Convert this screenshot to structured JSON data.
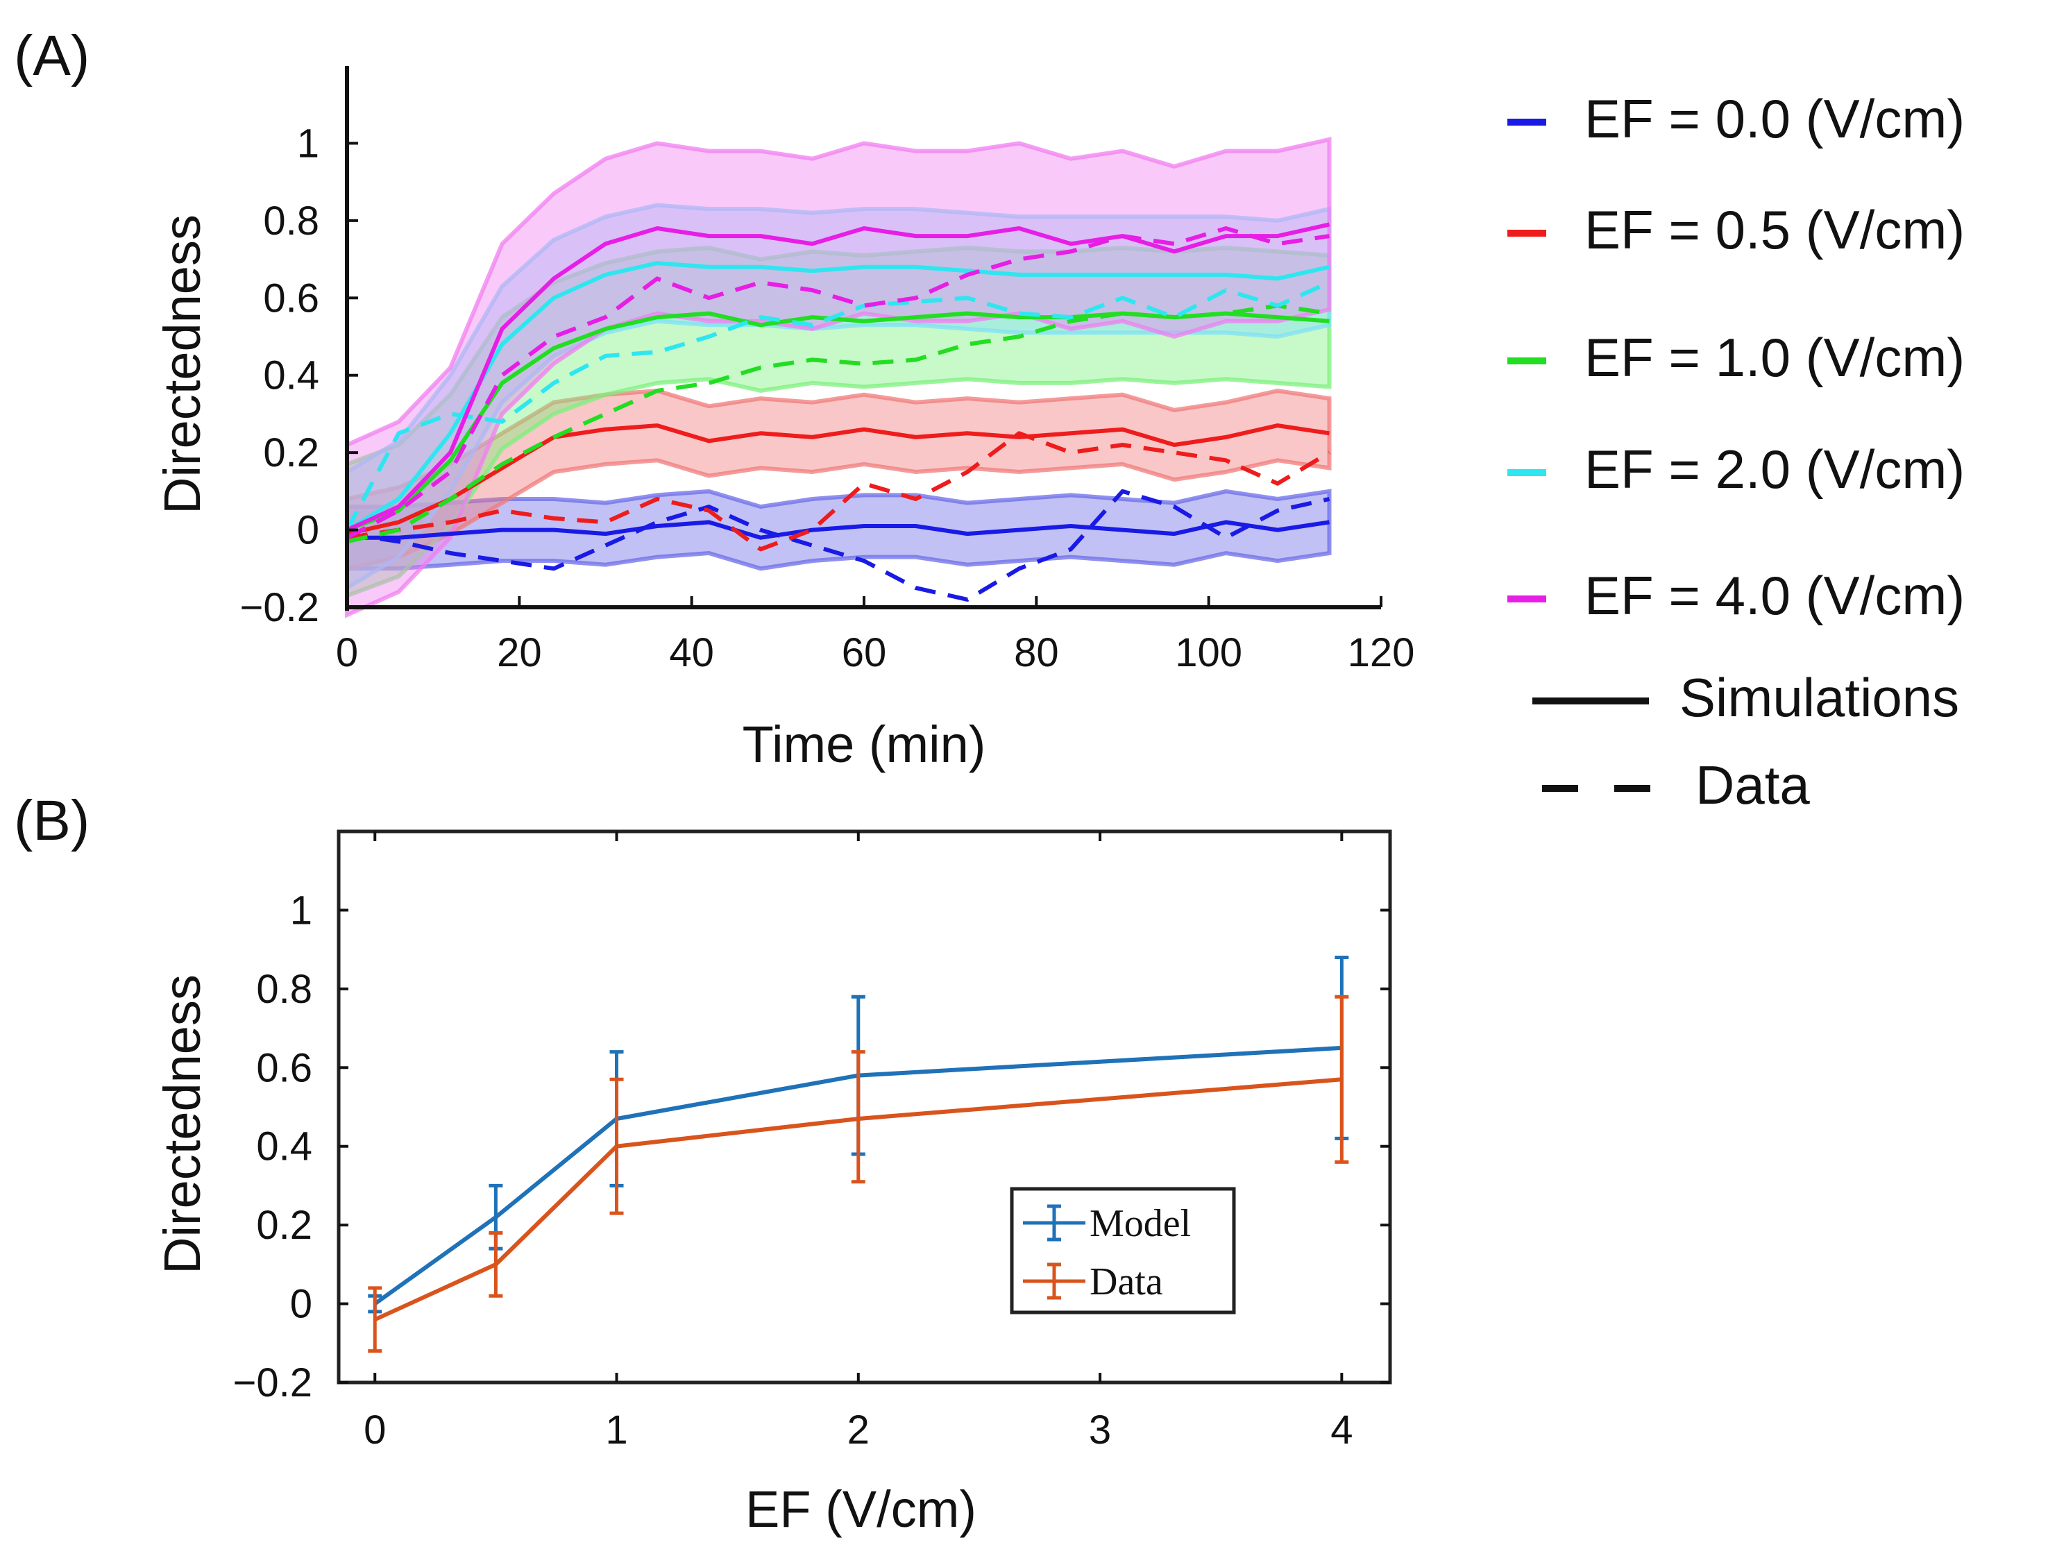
{
  "chart_data": [
    {
      "panel": "(A)",
      "type": "line",
      "title": "",
      "xlabel": "Time (min)",
      "ylabel": "Directedness",
      "xlim": [
        0,
        120
      ],
      "ylim": [
        -0.2,
        1.2
      ],
      "xticks": [
        "0",
        "20",
        "40",
        "60",
        "80",
        "100",
        "120"
      ],
      "yticks": [
        "−0.2",
        "0",
        "0.2",
        "0.4",
        "0.6",
        "0.8",
        "1"
      ],
      "x": [
        0,
        6,
        12,
        18,
        24,
        30,
        36,
        42,
        48,
        54,
        60,
        66,
        72,
        78,
        84,
        90,
        96,
        102,
        108,
        114
      ],
      "series": [
        {
          "name": "EF = 0.0 (V/cm)",
          "color": "#1a1ae6",
          "band_color": "#6b6be8",
          "sim": [
            -0.02,
            -0.02,
            -0.01,
            0.0,
            0.0,
            -0.01,
            0.01,
            0.02,
            -0.02,
            0.0,
            0.01,
            0.01,
            -0.01,
            0.0,
            0.01,
            0.0,
            -0.01,
            0.02,
            0.0,
            0.02
          ],
          "sim_band": 0.08,
          "data": [
            -0.01,
            -0.03,
            -0.06,
            -0.08,
            -0.1,
            -0.04,
            0.02,
            0.06,
            0.0,
            -0.04,
            -0.08,
            -0.15,
            -0.18,
            -0.1,
            -0.05,
            0.1,
            0.06,
            -0.02,
            0.05,
            0.08
          ]
        },
        {
          "name": "EF = 0.5 (V/cm)",
          "color": "#ee1c1c",
          "band_color": "#f07a7a",
          "sim": [
            -0.01,
            0.02,
            0.08,
            0.16,
            0.24,
            0.26,
            0.27,
            0.23,
            0.25,
            0.24,
            0.26,
            0.24,
            0.25,
            0.24,
            0.25,
            0.26,
            0.22,
            0.24,
            0.27,
            0.25
          ],
          "sim_band": 0.09,
          "data": [
            -0.02,
            0.0,
            0.02,
            0.05,
            0.03,
            0.02,
            0.08,
            0.05,
            -0.05,
            0.0,
            0.12,
            0.08,
            0.15,
            0.25,
            0.2,
            0.22,
            0.2,
            0.18,
            0.12,
            0.2
          ]
        },
        {
          "name": "EF = 1.0 (V/cm)",
          "color": "#22dd22",
          "band_color": "#7cf07c",
          "sim": [
            0.0,
            0.05,
            0.18,
            0.38,
            0.47,
            0.52,
            0.55,
            0.56,
            0.53,
            0.55,
            0.54,
            0.55,
            0.56,
            0.55,
            0.55,
            0.56,
            0.55,
            0.56,
            0.55,
            0.54
          ],
          "sim_band": 0.17,
          "data": [
            -0.03,
            0.0,
            0.08,
            0.17,
            0.24,
            0.3,
            0.36,
            0.38,
            0.42,
            0.44,
            0.43,
            0.44,
            0.48,
            0.5,
            0.54,
            0.56,
            0.55,
            0.56,
            0.58,
            0.56
          ]
        },
        {
          "name": "EF = 2.0 (V/cm)",
          "color": "#2ee6f0",
          "band_color": "#7fe0f7",
          "sim": [
            0.0,
            0.08,
            0.25,
            0.48,
            0.6,
            0.66,
            0.69,
            0.68,
            0.68,
            0.67,
            0.68,
            0.68,
            0.67,
            0.66,
            0.66,
            0.66,
            0.66,
            0.66,
            0.65,
            0.68
          ],
          "sim_band": 0.15,
          "data": [
            0.0,
            0.25,
            0.3,
            0.28,
            0.38,
            0.45,
            0.46,
            0.5,
            0.55,
            0.53,
            0.58,
            0.59,
            0.6,
            0.56,
            0.55,
            0.6,
            0.55,
            0.62,
            0.58,
            0.64
          ]
        },
        {
          "name": "EF = 4.0 (V/cm)",
          "color": "#e61ee6",
          "band_color": "#f07ef0",
          "sim": [
            0.0,
            0.06,
            0.2,
            0.52,
            0.65,
            0.74,
            0.78,
            0.76,
            0.76,
            0.74,
            0.78,
            0.76,
            0.76,
            0.78,
            0.74,
            0.76,
            0.72,
            0.76,
            0.76,
            0.79
          ],
          "sim_band": 0.22,
          "data": [
            -0.02,
            0.05,
            0.15,
            0.4,
            0.5,
            0.55,
            0.65,
            0.6,
            0.64,
            0.62,
            0.58,
            0.6,
            0.66,
            0.7,
            0.72,
            0.76,
            0.74,
            0.78,
            0.74,
            0.76
          ]
        }
      ],
      "legend": {
        "placement": "right",
        "entries": [
          "EF = 0.0 (V/cm)",
          "EF = 0.5 (V/cm)",
          "EF = 1.0 (V/cm)",
          "EF = 2.0 (V/cm)",
          "EF = 4.0 (V/cm)"
        ],
        "style_entries": [
          {
            "label": "Simulations",
            "style": "solid"
          },
          {
            "label": "Data",
            "style": "dashed"
          }
        ]
      }
    },
    {
      "panel": "(B)",
      "type": "line",
      "title": "",
      "xlabel": "EF (V/cm)",
      "ylabel": "Directedness",
      "xlim": [
        -0.15,
        4.2
      ],
      "ylim": [
        -0.2,
        1.2
      ],
      "xticks": [
        "0",
        "1",
        "2",
        "3",
        "4"
      ],
      "yticks": [
        "−0.2",
        "0",
        "0.2",
        "0.4",
        "0.6",
        "0.8",
        "1"
      ],
      "x": [
        0,
        0.5,
        1,
        2,
        4
      ],
      "series": [
        {
          "name": "Model",
          "color": "#1f72b8",
          "values": [
            0.0,
            0.22,
            0.47,
            0.58,
            0.65
          ],
          "err_low": [
            0.02,
            0.08,
            0.17,
            0.2,
            0.23
          ],
          "err_high": [
            0.02,
            0.08,
            0.17,
            0.2,
            0.23
          ]
        },
        {
          "name": "Data",
          "color": "#d9541d",
          "values": [
            -0.04,
            0.1,
            0.4,
            0.47,
            0.57
          ],
          "err_low": [
            0.08,
            0.08,
            0.17,
            0.16,
            0.21
          ],
          "err_high": [
            0.08,
            0.08,
            0.17,
            0.17,
            0.21
          ]
        }
      ],
      "legend": {
        "placement": "lower-right",
        "entries": [
          "Model",
          "Data"
        ]
      }
    }
  ]
}
